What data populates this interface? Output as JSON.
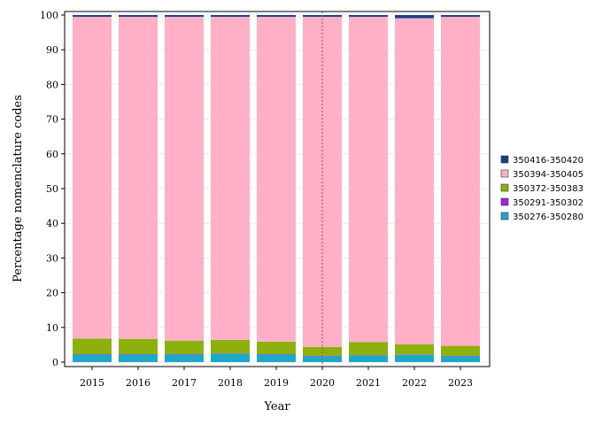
{
  "chart_data": {
    "type": "bar",
    "stacked": true,
    "title": "",
    "xlabel": "Year",
    "ylabel": "Percentage nomenclature codes",
    "ylim": [
      0,
      100
    ],
    "yticks": [
      0,
      10,
      20,
      30,
      40,
      50,
      60,
      70,
      80,
      90,
      100
    ],
    "categories": [
      "2015",
      "2016",
      "2017",
      "2018",
      "2019",
      "2020",
      "2021",
      "2022",
      "2023"
    ],
    "grid": true,
    "legend_position": "right",
    "reference_line_x": "2020",
    "series": [
      {
        "name": "350276-350280",
        "color": "#1ea8c8",
        "values": [
          2.2,
          2.2,
          2.2,
          2.4,
          2.2,
          1.7,
          1.9,
          2.1,
          1.7
        ]
      },
      {
        "name": "350291-350302",
        "color": "#a020f0",
        "values": [
          0.1,
          0.1,
          0.1,
          0.1,
          0.1,
          0.1,
          0.1,
          0.1,
          0.1
        ]
      },
      {
        "name": "350372-350383",
        "color": "#8db00c",
        "values": [
          4.5,
          4.4,
          3.9,
          3.9,
          3.6,
          2.6,
          3.8,
          2.9,
          2.9
        ]
      },
      {
        "name": "350394-350405",
        "color": "#ffb0c6",
        "values": [
          92.7,
          92.8,
          93.3,
          93.1,
          93.6,
          95.1,
          93.7,
          94.0,
          94.8
        ]
      },
      {
        "name": "350416-350420",
        "color": "#1a3f8c",
        "values": [
          0.5,
          0.5,
          0.5,
          0.5,
          0.5,
          0.5,
          0.5,
          0.9,
          0.5
        ]
      }
    ]
  }
}
